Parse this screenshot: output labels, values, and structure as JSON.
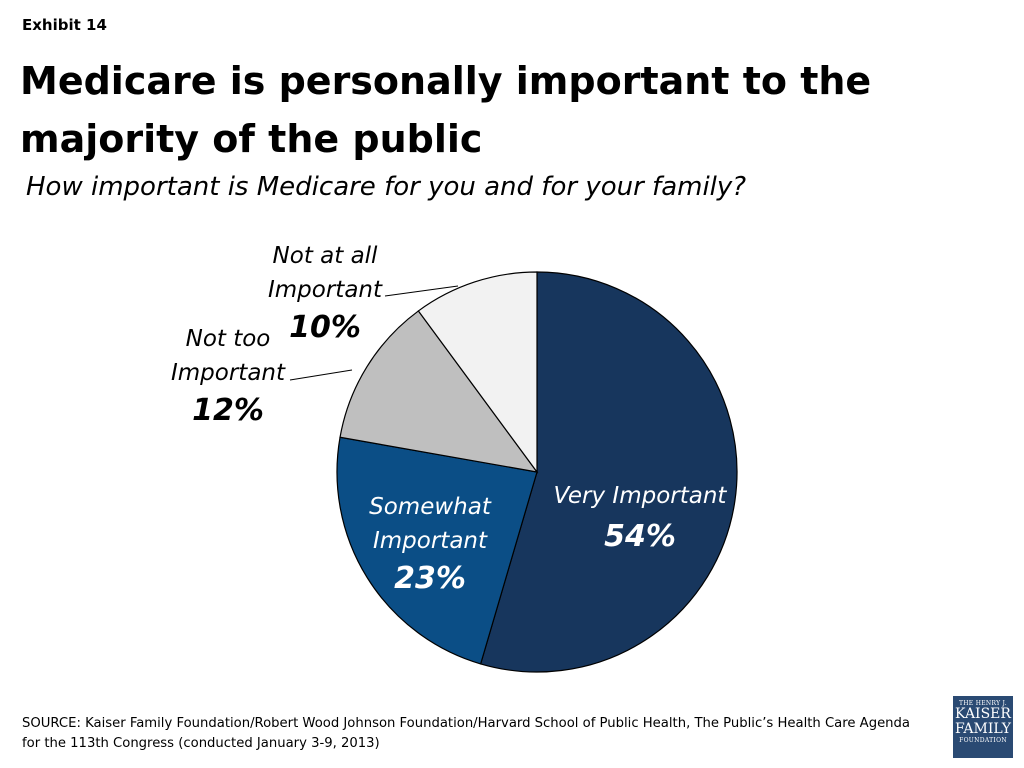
{
  "exhibit_label": "Exhibit 14",
  "title": "Medicare is personally important to the majority of the public",
  "subtitle": "How important is Medicare for you and for your family?",
  "source": "SOURCE: Kaiser Family Foundation/Robert Wood Johnson Foundation/Harvard School of Public Health, The Public’s Health Care Agenda for the 113th Congress (conducted January 3-9, 2013)",
  "logo": {
    "line1": "THE HENRY J.",
    "line2": "KAISER",
    "line3": "FAMILY",
    "line4": "FOUNDATION",
    "color": "#2a4a73"
  },
  "chart_data": {
    "type": "pie",
    "title": "",
    "start_angle_deg": 0,
    "direction": "clockwise",
    "slices": [
      {
        "label_lines": [
          "Very Important"
        ],
        "value": 54,
        "value_label": "54%",
        "color": "#17365d",
        "label_position": "inside",
        "label_color": "#ffffff"
      },
      {
        "label_lines": [
          "Somewhat",
          "Important"
        ],
        "value": 23,
        "value_label": "23%",
        "color": "#0b4e86",
        "label_position": "inside",
        "label_color": "#ffffff"
      },
      {
        "label_lines": [
          "Not too",
          "Important"
        ],
        "value": 12,
        "value_label": "12%",
        "color": "#bfbfbf",
        "label_position": "outside",
        "label_color": "#000000"
      },
      {
        "label_lines": [
          "Not at all",
          "Important"
        ],
        "value": 10,
        "value_label": "10%",
        "color": "#f2f2f2",
        "label_position": "outside",
        "label_color": "#000000"
      }
    ]
  }
}
